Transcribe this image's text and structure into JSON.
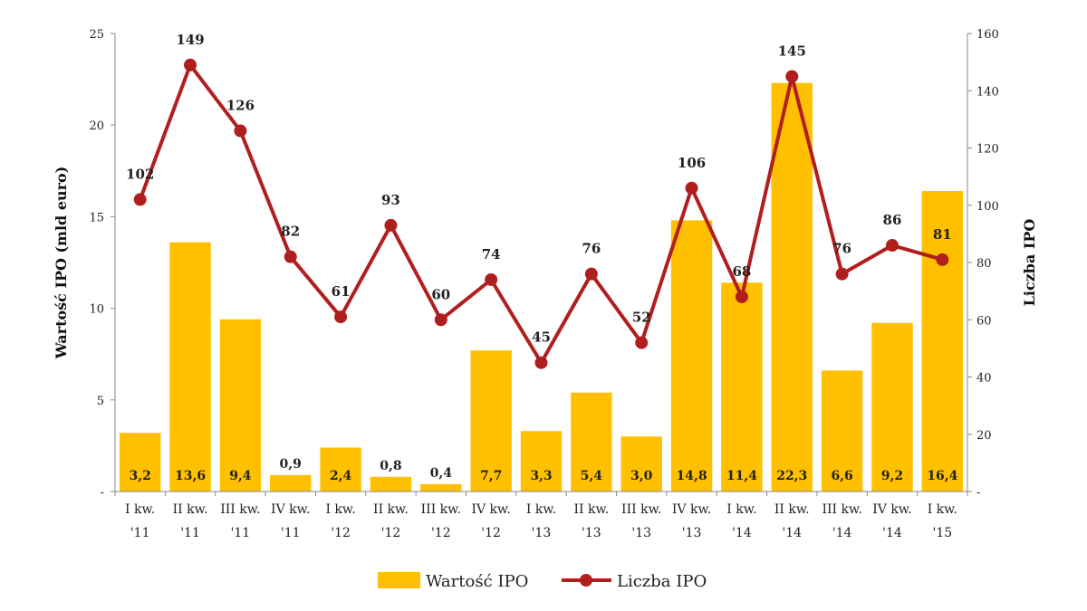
{
  "chart_data": {
    "type": "bar+line",
    "categories": [
      [
        "I kw.",
        "'11"
      ],
      [
        "II kw.",
        "'11"
      ],
      [
        "III kw.",
        "'11"
      ],
      [
        "IV kw.",
        "'11"
      ],
      [
        "I kw.",
        "'12"
      ],
      [
        "II kw.",
        "'12"
      ],
      [
        "III kw.",
        "'12"
      ],
      [
        "IV kw.",
        "'12"
      ],
      [
        "I kw.",
        "'13"
      ],
      [
        "II kw.",
        "'13"
      ],
      [
        "III kw.",
        "'13"
      ],
      [
        "IV kw.",
        "'13"
      ],
      [
        "I kw.",
        "'14"
      ],
      [
        "II kw.",
        "'14"
      ],
      [
        "III kw.",
        "'14"
      ],
      [
        "IV kw.",
        "'14"
      ],
      [
        "I kw.",
        "'15"
      ]
    ],
    "series": [
      {
        "name": "Wartość IPO",
        "type": "bar",
        "axis": "left",
        "color": "#FFC000",
        "values": [
          3.2,
          13.6,
          9.4,
          0.9,
          2.4,
          0.8,
          0.4,
          7.7,
          3.3,
          5.4,
          3.0,
          14.8,
          11.4,
          22.3,
          6.6,
          9.2,
          16.4
        ],
        "labels": [
          "3,2",
          "13,6",
          "9,4",
          "0,9",
          "2,4",
          "0,8",
          "0,4",
          "7,7",
          "3,3",
          "5,4",
          "3,0",
          "14,8",
          "11,4",
          "22,3",
          "6,6",
          "9,2",
          "16,4"
        ]
      },
      {
        "name": "Liczba IPO",
        "type": "line",
        "axis": "right",
        "color": "#B11E1E",
        "values": [
          102,
          149,
          126,
          82,
          61,
          93,
          60,
          74,
          45,
          76,
          52,
          106,
          68,
          145,
          76,
          86,
          81
        ],
        "labels": [
          "102",
          "149",
          "126",
          "82",
          "61",
          "93",
          "60",
          "74",
          "45",
          "76",
          "52",
          "106",
          "68",
          "145",
          "76",
          "86",
          "81"
        ]
      }
    ],
    "y_left": {
      "label": "Wartość IPO (mld euro)",
      "range": [
        0,
        25
      ],
      "ticks": [
        0,
        5,
        10,
        15,
        20,
        25
      ],
      "tick_labels": [
        "-",
        "5",
        "10",
        "15",
        "20",
        "25"
      ]
    },
    "y_right": {
      "label": "Liczba IPO",
      "range": [
        0,
        160
      ],
      "ticks": [
        0,
        20,
        40,
        60,
        80,
        100,
        120,
        140,
        160
      ],
      "tick_labels": [
        "-",
        "20",
        "40",
        "60",
        "80",
        "100",
        "120",
        "140",
        "160"
      ]
    },
    "grid": false,
    "legend": {
      "position": "bottom",
      "items": [
        "Wartość IPO",
        "Liczba IPO"
      ]
    }
  }
}
